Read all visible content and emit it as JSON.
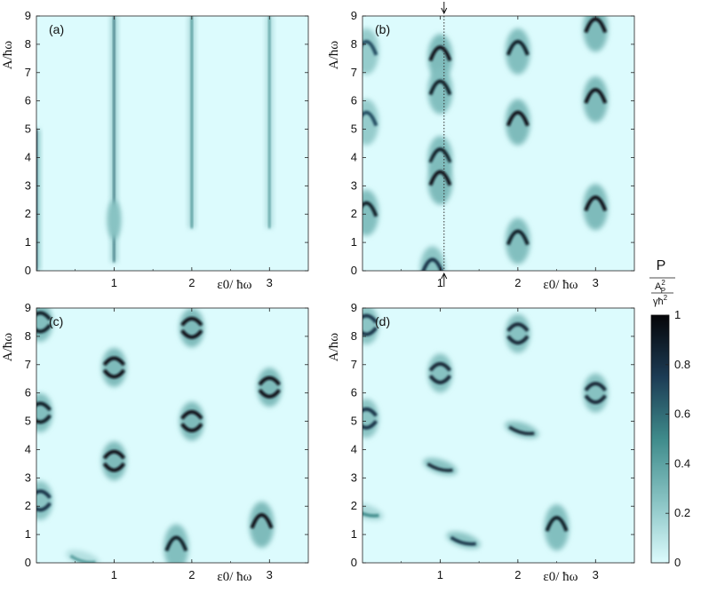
{
  "chart_data": [
    {
      "type": "heatmap",
      "panel_label": "(a)",
      "ylabel": "A/ħω",
      "xlabel": "ε0/ ħω",
      "xticks": [
        "1",
        "2",
        "3"
      ],
      "yticks": [
        "0",
        "1",
        "2",
        "3",
        "4",
        "5",
        "6",
        "7",
        "8",
        "9"
      ],
      "xlim": [
        0,
        3.5
      ],
      "ylim": [
        0,
        9
      ],
      "features": [
        {
          "kind": "streak",
          "x": 0.0,
          "y0": 0.0,
          "y1": 5.0,
          "amp": 0.8
        },
        {
          "kind": "streak",
          "x": 1.0,
          "y0": 0.3,
          "y1": 9.0,
          "amp": 0.6
        },
        {
          "kind": "blob",
          "x": 1.0,
          "y": 1.8,
          "amp": 0.25
        },
        {
          "kind": "streak",
          "x": 2.0,
          "y0": 1.5,
          "y1": 9.0,
          "amp": 0.5
        },
        {
          "kind": "streak",
          "x": 3.0,
          "y0": 1.5,
          "y1": 9.0,
          "amp": 0.45
        }
      ]
    },
    {
      "type": "heatmap",
      "panel_label": "(b)",
      "ylabel": "A/ħω",
      "xlabel": "ε0/ ħω",
      "xticks": [
        "1",
        "2",
        "3"
      ],
      "yticks": [
        "0",
        "1",
        "2",
        "3",
        "4",
        "5",
        "6",
        "7",
        "8",
        "9"
      ],
      "xlim": [
        0,
        3.5
      ],
      "ylim": [
        0,
        9
      ],
      "marker_line_x": 1.05,
      "features": [
        {
          "kind": "arc",
          "x": 1.0,
          "y": 7.8,
          "amp": 0.95
        },
        {
          "kind": "arc",
          "x": 1.0,
          "y": 6.6,
          "amp": 0.9
        },
        {
          "kind": "arc",
          "x": 1.0,
          "y": 4.2,
          "amp": 0.9
        },
        {
          "kind": "arc",
          "x": 1.0,
          "y": 3.4,
          "amp": 0.95
        },
        {
          "kind": "arc",
          "x": 0.9,
          "y": 0.3,
          "amp": 0.8
        },
        {
          "kind": "arc",
          "x": 2.0,
          "y": 8.0,
          "amp": 0.9
        },
        {
          "kind": "arc",
          "x": 2.0,
          "y": 5.5,
          "amp": 0.95
        },
        {
          "kind": "arc",
          "x": 2.0,
          "y": 1.3,
          "amp": 0.9
        },
        {
          "kind": "arc",
          "x": 3.0,
          "y": 8.8,
          "amp": 0.95
        },
        {
          "kind": "arc",
          "x": 3.0,
          "y": 6.3,
          "amp": 0.95
        },
        {
          "kind": "arc",
          "x": 3.0,
          "y": 2.5,
          "amp": 0.95
        },
        {
          "kind": "arc",
          "x": 0.05,
          "y": 2.3,
          "amp": 0.9
        },
        {
          "kind": "arc",
          "x": 0.05,
          "y": 5.5,
          "amp": 0.7
        },
        {
          "kind": "arc",
          "x": 0.05,
          "y": 8.0,
          "amp": 0.7
        }
      ]
    },
    {
      "type": "heatmap",
      "panel_label": "(c)",
      "ylabel": "A/ħω",
      "xlabel": "ε0/ ħω",
      "xticks": [
        "1",
        "2",
        "3"
      ],
      "yticks": [
        "0",
        "1",
        "2",
        "3",
        "4",
        "5",
        "6",
        "7",
        "8",
        "9"
      ],
      "xlim": [
        0,
        3.5
      ],
      "ylim": [
        0,
        9
      ],
      "features": [
        {
          "kind": "ring",
          "x": 1.0,
          "y": 6.9,
          "amp": 0.95
        },
        {
          "kind": "ring",
          "x": 1.0,
          "y": 3.6,
          "amp": 0.95
        },
        {
          "kind": "ring",
          "x": 2.0,
          "y": 8.3,
          "amp": 0.95
        },
        {
          "kind": "ring",
          "x": 2.0,
          "y": 5.0,
          "amp": 0.95
        },
        {
          "kind": "ring",
          "x": 3.0,
          "y": 6.2,
          "amp": 0.95
        },
        {
          "kind": "arc",
          "x": 1.8,
          "y": 0.8,
          "amp": 0.9
        },
        {
          "kind": "arc",
          "x": 2.9,
          "y": 1.6,
          "amp": 0.95
        },
        {
          "kind": "ring",
          "x": 0.05,
          "y": 8.5,
          "amp": 0.9
        },
        {
          "kind": "ring",
          "x": 0.05,
          "y": 5.3,
          "amp": 0.9
        },
        {
          "kind": "ring",
          "x": 0.05,
          "y": 2.2,
          "amp": 0.8
        },
        {
          "kind": "smear",
          "x": 0.6,
          "y": 0.15,
          "amp": 0.4
        }
      ]
    },
    {
      "type": "heatmap",
      "panel_label": "(d)",
      "ylabel": "A/ħω",
      "xlabel": "ε0/ ħω",
      "xticks": [
        "1",
        "2",
        "3"
      ],
      "yticks": [
        "0",
        "1",
        "2",
        "3",
        "4",
        "5",
        "6",
        "7",
        "8",
        "9"
      ],
      "xlim": [
        0,
        3.5
      ],
      "ylim": [
        0,
        9
      ],
      "features": [
        {
          "kind": "ring",
          "x": 1.0,
          "y": 6.7,
          "amp": 0.85
        },
        {
          "kind": "smear",
          "x": 1.0,
          "y": 3.4,
          "amp": 0.85
        },
        {
          "kind": "ring",
          "x": 2.0,
          "y": 8.1,
          "amp": 0.85
        },
        {
          "kind": "smear",
          "x": 2.05,
          "y": 4.7,
          "amp": 0.85
        },
        {
          "kind": "ring",
          "x": 3.0,
          "y": 6.0,
          "amp": 0.85
        },
        {
          "kind": "arc",
          "x": 2.5,
          "y": 1.5,
          "amp": 0.9
        },
        {
          "kind": "smear",
          "x": 1.3,
          "y": 0.8,
          "amp": 0.8
        },
        {
          "kind": "ring",
          "x": 0.05,
          "y": 8.4,
          "amp": 0.8
        },
        {
          "kind": "ring",
          "x": 0.05,
          "y": 5.1,
          "amp": 0.8
        },
        {
          "kind": "smear",
          "x": 0.05,
          "y": 1.8,
          "amp": 0.5
        }
      ]
    }
  ],
  "colorbar": {
    "title": "P",
    "unit_num": "A",
    "unit_num_sup": "2",
    "unit_num_sub": "P",
    "unit_den": "γħ",
    "unit_den_sup": "2",
    "ticks": [
      "0",
      "0.2",
      "0.4",
      "0.6",
      "0.8",
      "1"
    ],
    "range": [
      0,
      1
    ],
    "colors": [
      "#dcfbfd",
      "#2e7a7a",
      "#0b0b14"
    ]
  }
}
